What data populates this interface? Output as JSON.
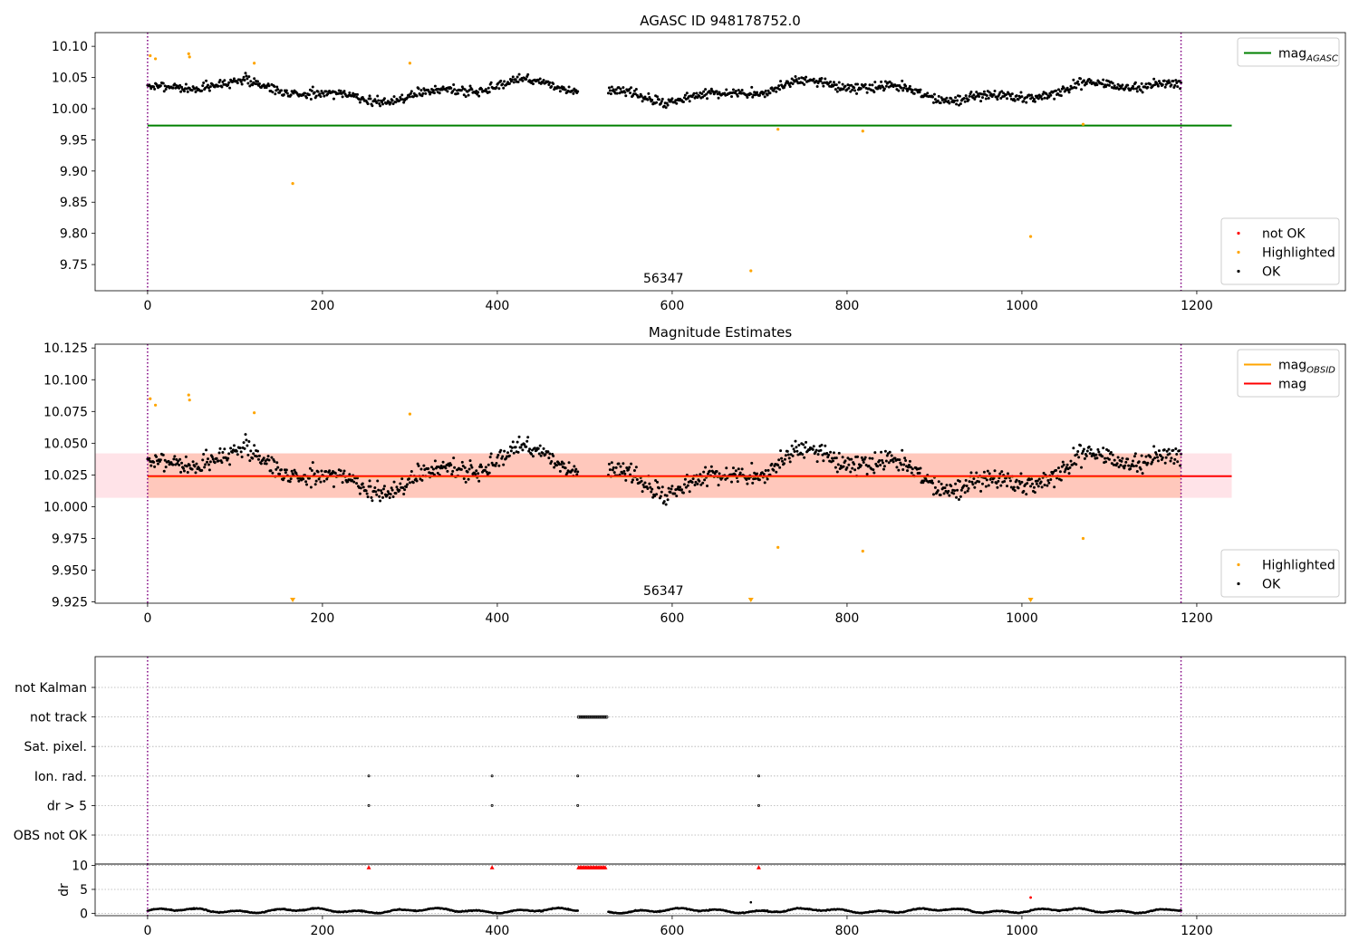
{
  "figure": {
    "chart_data": [
      {
        "type": "scatter",
        "title": "AGASC ID 948178752.0",
        "xlim": [
          -60,
          1370
        ],
        "ylim": [
          9.708,
          10.122
        ],
        "xticks": [
          0,
          200,
          400,
          600,
          800,
          1000,
          1200
        ],
        "yticks": [
          9.75,
          9.8,
          9.85,
          9.9,
          9.95,
          10.0,
          10.05,
          10.1
        ],
        "ytick_decimals": 2,
        "vlines": [
          0,
          1182
        ],
        "obsid_label": {
          "text": "56347",
          "x": 590
        },
        "mag_agasc": {
          "value": 9.973,
          "x_range": [
            0,
            1240
          ],
          "color": "#008000"
        },
        "legend_top": [
          {
            "label": "mag",
            "sub": "AGASC",
            "color": "#008000",
            "kind": "line"
          }
        ],
        "legend_bottom": [
          {
            "label": "not OK",
            "color": "#ff0000",
            "kind": "dot"
          },
          {
            "label": "Highlighted",
            "color": "#ffa500",
            "kind": "dot"
          },
          {
            "label": "OK",
            "color": "#000000",
            "kind": "dot"
          }
        ],
        "series": [
          {
            "name": "Highlighted",
            "color": "#ffa500",
            "points": [
              [
                3,
                10.085
              ],
              [
                9,
                10.08
              ],
              [
                47,
                10.088
              ],
              [
                48,
                10.083
              ],
              [
                122,
                10.073
              ],
              [
                166,
                9.88
              ],
              [
                300,
                10.073
              ],
              [
                690,
                9.74
              ],
              [
                721,
                9.967
              ],
              [
                818,
                9.964
              ],
              [
                1010,
                9.795
              ],
              [
                1070,
                9.975
              ]
            ]
          }
        ]
      },
      {
        "type": "scatter",
        "title": "Magnitude Estimates",
        "xlim": [
          -60,
          1370
        ],
        "ylim": [
          9.924,
          10.128
        ],
        "xticks": [
          0,
          200,
          400,
          600,
          800,
          1000,
          1200
        ],
        "yticks": [
          9.925,
          9.95,
          9.975,
          10.0,
          10.025,
          10.05,
          10.075,
          10.1,
          10.125
        ],
        "ytick_decimals": 3,
        "vlines": [
          0,
          1182
        ],
        "obsid_label": {
          "text": "56347",
          "x": 590
        },
        "mag": {
          "value": 10.024,
          "x_range": [
            0,
            1240
          ],
          "color": "#ff0000"
        },
        "mag_obsid": {
          "value": 10.024,
          "x_range": [
            0,
            1182
          ],
          "color": "#ffa500"
        },
        "band_outer": {
          "low": 10.007,
          "high": 10.042,
          "x_range": [
            -60,
            1240
          ],
          "color": "#ffc0cb"
        },
        "band_inner": {
          "low": 10.007,
          "high": 10.042,
          "x_range": [
            0,
            1182
          ],
          "color": "#ffa07a"
        },
        "legend_top": [
          {
            "label": "mag",
            "sub": "OBSID",
            "color": "#ffa500",
            "kind": "line"
          },
          {
            "label": "mag",
            "sub": "",
            "color": "#ff0000",
            "kind": "line"
          }
        ],
        "legend_bottom": [
          {
            "label": "Highlighted",
            "color": "#ffa500",
            "kind": "dot"
          },
          {
            "label": "OK",
            "color": "#000000",
            "kind": "dot"
          }
        ],
        "series": [
          {
            "name": "Highlighted",
            "color": "#ffa500",
            "points": [
              [
                3,
                10.085
              ],
              [
                9,
                10.08
              ],
              [
                47,
                10.088
              ],
              [
                48,
                10.084
              ],
              [
                122,
                10.074
              ],
              [
                300,
                10.073
              ],
              [
                721,
                9.968
              ],
              [
                818,
                9.965
              ],
              [
                1070,
                9.975
              ]
            ]
          },
          {
            "name": "Highlighted (clipped)",
            "color": "#ffa500",
            "marker": "triangle-down",
            "points": [
              [
                166,
                9.925
              ],
              [
                690,
                9.925
              ],
              [
                1010,
                9.925
              ]
            ]
          }
        ]
      },
      {
        "type": "scatter",
        "title": "",
        "xlim": [
          -60,
          1370
        ],
        "xticks": [
          0,
          200,
          400,
          600,
          800,
          1000,
          1200
        ],
        "vlines": [
          0,
          1182
        ],
        "categories": [
          "not Kalman",
          "not track",
          "Sat. pixel.",
          "Ion. rad.",
          "dr > 5",
          "OBS not OK"
        ],
        "flags": [
          {
            "category": "not track",
            "x_range": [
              493,
              525
            ],
            "step": 2
          },
          {
            "category": "Ion. rad.",
            "points": [
              253,
              394,
              492,
              699
            ]
          },
          {
            "category": "dr > 5",
            "points": [
              253,
              394,
              492,
              699
            ]
          }
        ]
      },
      {
        "type": "scatter",
        "title": "",
        "xlim": [
          -60,
          1370
        ],
        "ylim": [
          -0.5,
          10.3
        ],
        "xticks": [
          0,
          200,
          400,
          600,
          800,
          1000,
          1200
        ],
        "yticks": [
          0,
          5,
          10
        ],
        "ytick_decimals": 0,
        "ylabel": "dr",
        "vlines": [
          0,
          1182
        ],
        "series": [
          {
            "name": "dr > 5 (clipped)",
            "color": "#ff0000",
            "marker": "triangle-up",
            "points": [
              [
                253,
                9.6
              ],
              [
                394,
                9.6
              ],
              [
                699,
                9.6
              ]
            ],
            "x_range": [
              493,
              525
            ]
          },
          {
            "name": "dr outliers",
            "color": "#ff0000",
            "points": [
              [
                1010,
                3.3
              ]
            ]
          },
          {
            "name": "dr",
            "color": "#000000",
            "points": [
              [
                690,
                2.3
              ]
            ]
          }
        ]
      }
    ]
  }
}
